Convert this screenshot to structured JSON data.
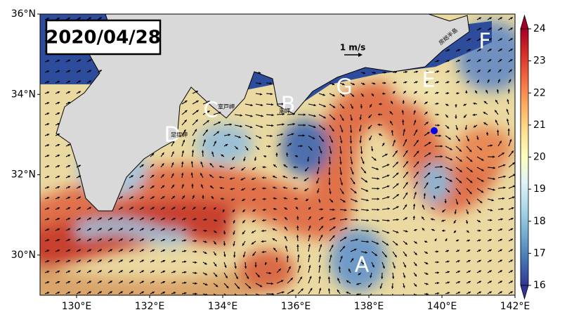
{
  "title": "2020/04/28",
  "scale_arrow": "1 m/s",
  "xaxis": {
    "lim": [
      129,
      142
    ],
    "ticks": [
      {
        "value": 130,
        "label": "130°E"
      },
      {
        "value": 132,
        "label": "132°E"
      },
      {
        "value": 134,
        "label": "134°E"
      },
      {
        "value": 136,
        "label": "136°E"
      },
      {
        "value": 138,
        "label": "138°E"
      },
      {
        "value": 140,
        "label": "140°E"
      },
      {
        "value": 142,
        "label": "142°E"
      }
    ]
  },
  "yaxis": {
    "lim": [
      29,
      36
    ],
    "ticks": [
      {
        "value": 30,
        "label": "30°N"
      },
      {
        "value": 32,
        "label": "32°N"
      },
      {
        "value": 34,
        "label": "34°N"
      },
      {
        "value": 36,
        "label": "36°N"
      }
    ]
  },
  "colorbar": {
    "ticks": [
      16,
      17,
      18,
      19,
      20,
      21,
      22,
      23,
      24
    ]
  },
  "region_labels": [
    "A",
    "B",
    "C",
    "D",
    "E",
    "F",
    "G"
  ],
  "place_names": [
    "室戸岬",
    "足摺岬",
    "潮岬",
    "房総半島"
  ]
}
